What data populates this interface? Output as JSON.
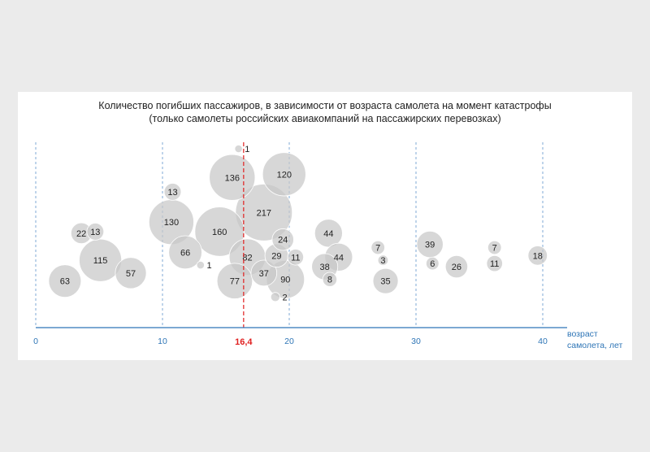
{
  "chart_data": {
    "type": "scatter",
    "subtype": "bubble",
    "title": "Количество погибших пассажиров, в зависимости от возраста самолета на момент катастрофы",
    "subtitle": "(только самолеты российских авиакомпаний на пассажирских перевозках)",
    "xlabel": "возраст самолета, лет",
    "xlabel_lines": [
      "возраст",
      "самолета, лет"
    ],
    "xlim": [
      0,
      42
    ],
    "x_ticks": [
      0,
      10,
      20,
      30,
      40
    ],
    "x_tick_labels": [
      "0",
      "10",
      "20",
      "30",
      "40"
    ],
    "gridlines": "vertical dashed",
    "mean_line": {
      "x": 16.4,
      "label": "16,4",
      "color": "#e02020"
    },
    "colors": {
      "bubble_fill": "#c8c8c8",
      "bubble_stroke": "#ffffff",
      "axis": "#2e75b6",
      "mean": "#e02020"
    },
    "points": [
      {
        "x": 16.0,
        "level": 1.0,
        "value": 1
      },
      {
        "x": 15.5,
        "level": 0.82,
        "value": 136
      },
      {
        "x": 19.6,
        "level": 0.84,
        "value": 120
      },
      {
        "x": 10.8,
        "level": 0.73,
        "value": 13
      },
      {
        "x": 18.0,
        "level": 0.6,
        "value": 217
      },
      {
        "x": 10.7,
        "level": 0.54,
        "value": 130
      },
      {
        "x": 14.5,
        "level": 0.48,
        "value": 160
      },
      {
        "x": 3.6,
        "level": 0.47,
        "value": 22
      },
      {
        "x": 4.7,
        "level": 0.48,
        "value": 13
      },
      {
        "x": 23.1,
        "level": 0.47,
        "value": 44
      },
      {
        "x": 19.5,
        "level": 0.43,
        "value": 24
      },
      {
        "x": 27.0,
        "level": 0.38,
        "value": 7
      },
      {
        "x": 31.1,
        "level": 0.4,
        "value": 39
      },
      {
        "x": 36.2,
        "level": 0.38,
        "value": 7
      },
      {
        "x": 39.6,
        "level": 0.33,
        "value": 18
      },
      {
        "x": 11.8,
        "level": 0.35,
        "value": 66
      },
      {
        "x": 5.1,
        "level": 0.3,
        "value": 115
      },
      {
        "x": 16.7,
        "level": 0.32,
        "value": 82
      },
      {
        "x": 19.0,
        "level": 0.33,
        "value": 29
      },
      {
        "x": 20.5,
        "level": 0.32,
        "value": 11
      },
      {
        "x": 23.9,
        "level": 0.32,
        "value": 44
      },
      {
        "x": 27.4,
        "level": 0.3,
        "value": 3
      },
      {
        "x": 31.3,
        "level": 0.28,
        "value": 6
      },
      {
        "x": 33.2,
        "level": 0.26,
        "value": 26
      },
      {
        "x": 36.2,
        "level": 0.28,
        "value": 11
      },
      {
        "x": 13.0,
        "level": 0.27,
        "value": 1
      },
      {
        "x": 7.5,
        "level": 0.22,
        "value": 57
      },
      {
        "x": 22.8,
        "level": 0.26,
        "value": 38
      },
      {
        "x": 18.0,
        "level": 0.22,
        "value": 37
      },
      {
        "x": 2.3,
        "level": 0.17,
        "value": 63
      },
      {
        "x": 15.7,
        "level": 0.17,
        "value": 77
      },
      {
        "x": 19.7,
        "level": 0.18,
        "value": 90
      },
      {
        "x": 23.2,
        "level": 0.18,
        "value": 8
      },
      {
        "x": 27.6,
        "level": 0.17,
        "value": 35
      },
      {
        "x": 18.9,
        "level": 0.07,
        "value": 2
      }
    ]
  }
}
